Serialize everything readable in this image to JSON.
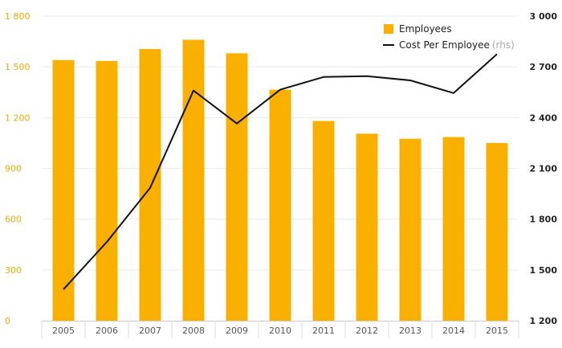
{
  "chart_data": {
    "type": "bar",
    "categories": [
      "2005",
      "2006",
      "2007",
      "2008",
      "2009",
      "2010",
      "2011",
      "2012",
      "2013",
      "2014",
      "2015"
    ],
    "series": [
      {
        "name": "Employees",
        "type": "bar",
        "axis": "left",
        "color": "#f9b000",
        "values": [
          1540,
          1535,
          1605,
          1660,
          1580,
          1365,
          1180,
          1105,
          1075,
          1085,
          1050
        ]
      },
      {
        "name": "Cost Per Employee",
        "name_suffix": "(rhs)",
        "type": "line",
        "axis": "right",
        "color": "#111111",
        "values": [
          1385,
          1665,
          1985,
          2560,
          2365,
          2565,
          2640,
          2645,
          2620,
          2545,
          2775
        ]
      }
    ],
    "y_left": {
      "ylim": [
        0,
        1800
      ],
      "ticks": [
        0,
        300,
        600,
        900,
        1200,
        1500,
        1800
      ],
      "tick_labels": [
        "0",
        "300",
        "600",
        "900",
        "1 200",
        "1 500",
        "1 800"
      ]
    },
    "y_right": {
      "ylim": [
        1200,
        3000
      ],
      "ticks": [
        1200,
        1500,
        1800,
        2100,
        2400,
        2700,
        3000
      ],
      "tick_labels": [
        "1 200",
        "1 500",
        "1 800",
        "2 100",
        "2 400",
        "2 700",
        "3 000"
      ]
    },
    "grid": true,
    "legend_position": "top-right",
    "title": "",
    "xlabel": "",
    "ylabel": ""
  }
}
